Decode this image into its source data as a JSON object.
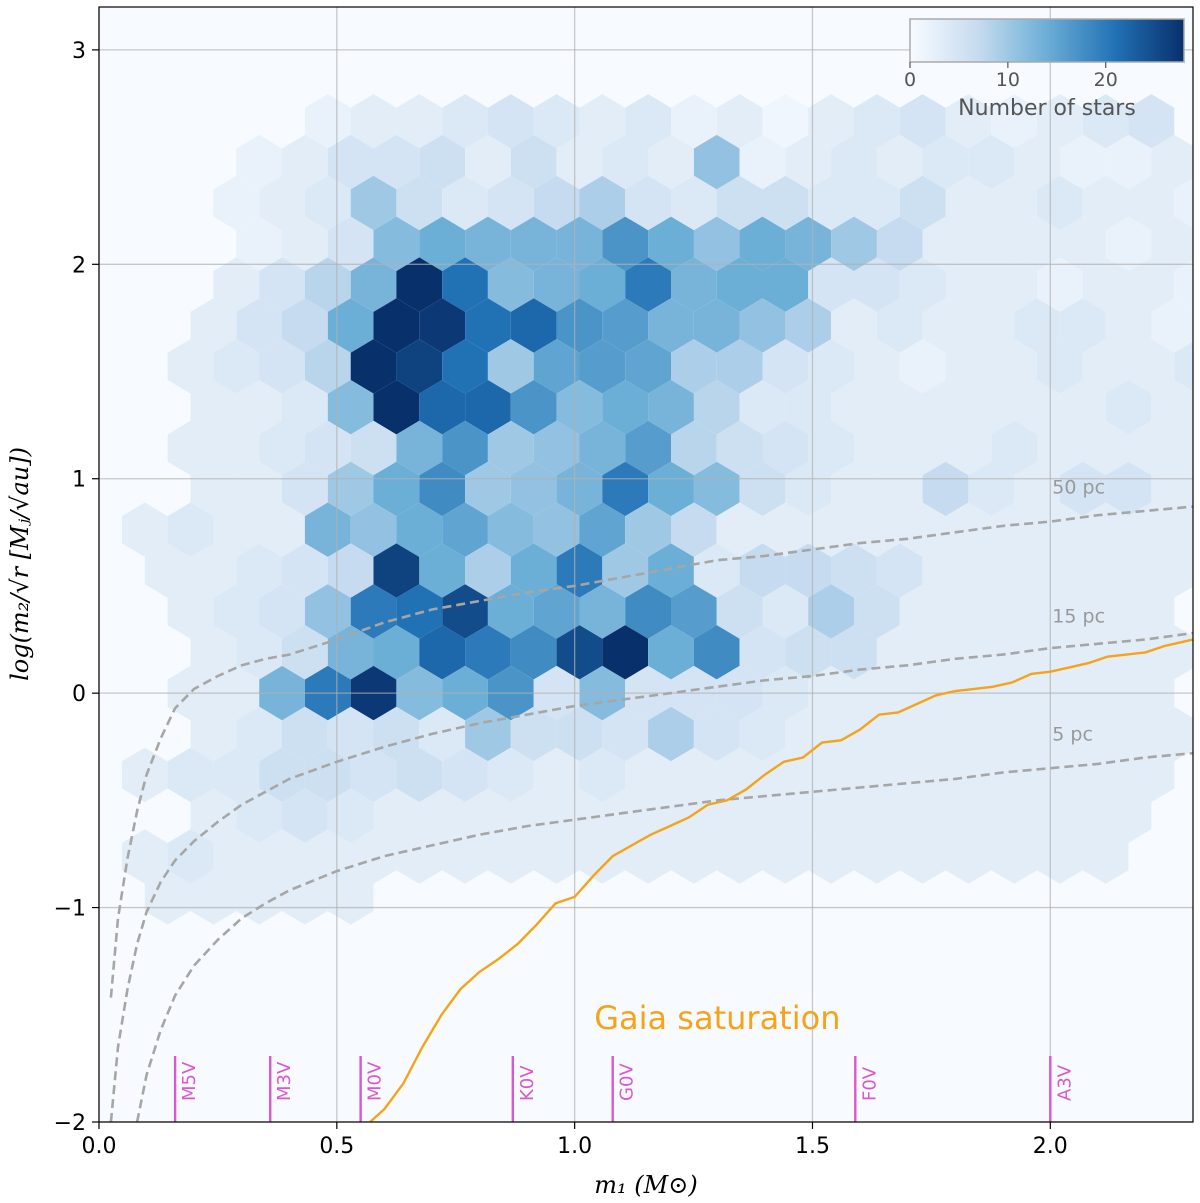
{
  "chart_data": {
    "type": "heatmap",
    "xlabel": "m₁ (M⊙)",
    "ylabel": "log(m₂/√r  [Mⱼ/√au])",
    "xlim": [
      0.0,
      2.3
    ],
    "ylim": [
      -2.0,
      3.2
    ],
    "xticks": [
      0.0,
      0.5,
      1.0,
      1.5,
      2.0
    ],
    "xtick_labels": [
      "0.0",
      "0.5",
      "1.0",
      "1.5",
      "2.0"
    ],
    "yticks": [
      -2,
      -1,
      0,
      1,
      2,
      3
    ],
    "ytick_labels": [
      "−2",
      "−1",
      "0",
      "1",
      "2",
      "3"
    ],
    "grid": true,
    "colorbar": {
      "label": "Number of stars",
      "ticks": [
        0,
        10,
        20
      ],
      "tick_labels": [
        "0",
        "10",
        "20"
      ],
      "vmin": 0,
      "vmax": 28,
      "placement": "top-right",
      "colors": [
        "#f7fbff",
        "#c6dbef",
        "#6baed6",
        "#2171b5",
        "#08306b"
      ]
    },
    "hexbin": {
      "dx": 0.0962,
      "dy": 0.1905,
      "origin_x": 0.0,
      "origin_y": -2.0,
      "counts": [
        [
          3,
          0,
          1
        ],
        [
          2,
          1,
          2
        ],
        [
          2,
          3,
          2
        ],
        [
          0,
          5,
          3
        ],
        [
          1,
          5,
          3
        ],
        [
          2,
          5,
          3
        ],
        [
          4,
          5,
          3
        ],
        [
          5,
          5,
          4
        ],
        [
          6,
          5,
          3
        ],
        [
          8,
          5,
          5
        ],
        [
          9,
          5,
          4
        ],
        [
          10,
          5,
          3
        ],
        [
          11,
          5,
          3
        ],
        [
          14,
          5,
          4
        ],
        [
          15,
          5,
          4
        ],
        [
          16,
          5,
          3
        ],
        [
          18,
          5,
          3
        ],
        [
          19,
          5,
          3
        ],
        [
          21,
          5,
          3
        ],
        [
          22,
          5,
          3
        ],
        [
          7,
          4,
          4
        ],
        [
          8,
          4,
          2
        ],
        [
          9,
          4,
          4
        ],
        [
          10,
          4,
          4
        ],
        [
          11,
          4,
          3
        ],
        [
          12,
          4,
          3
        ],
        [
          13,
          4,
          3
        ],
        [
          14,
          4,
          3
        ],
        [
          15,
          4,
          3
        ],
        [
          16,
          4,
          3
        ],
        [
          17,
          4,
          2
        ],
        [
          18,
          4,
          3
        ],
        [
          19,
          4,
          3
        ],
        [
          20,
          4,
          2
        ],
        [
          21,
          4,
          3
        ],
        [
          22,
          4,
          2
        ],
        [
          23,
          4,
          3
        ],
        [
          0,
          3,
          3
        ],
        [
          1,
          3,
          2
        ],
        [
          2,
          3,
          3
        ],
        [
          3,
          3,
          3
        ],
        [
          4,
          3,
          3
        ],
        [
          5,
          3,
          3
        ],
        [
          6,
          3,
          3
        ],
        [
          7,
          3,
          3
        ],
        [
          8,
          3,
          3
        ],
        [
          9,
          3,
          2
        ],
        [
          10,
          3,
          3
        ],
        [
          11,
          3,
          3
        ],
        [
          12,
          3,
          3
        ],
        [
          13,
          3,
          3
        ],
        [
          14,
          3,
          3
        ],
        [
          15,
          3,
          2
        ],
        [
          16,
          3,
          3
        ],
        [
          17,
          3,
          3
        ],
        [
          18,
          3,
          3
        ],
        [
          19,
          3,
          3
        ],
        [
          20,
          3,
          3
        ],
        [
          21,
          3,
          3
        ],
        [
          22,
          3,
          3
        ],
        [
          23,
          3,
          3
        ]
      ],
      "count_rows": [
        {
          "y_row": 14,
          "x_start": 4,
          "counts": [
            0,
            2,
            3,
            3,
            4,
            5,
            4,
            3,
            4,
            2,
            3,
            1,
            3,
            4,
            5,
            3,
            2,
            3,
            4,
            5
          ]
        },
        {
          "y_row": 13,
          "x_start": 3,
          "counts": [
            2,
            3,
            5,
            5,
            6,
            3,
            6,
            3,
            4,
            3,
            11,
            2,
            3,
            4,
            3,
            4,
            4,
            3,
            2,
            2,
            3,
            3
          ]
        },
        {
          "y_row": 12,
          "x_start": 3,
          "counts": [
            2,
            3,
            4,
            10,
            6,
            4,
            5,
            7,
            9,
            5,
            4,
            6,
            6,
            4,
            4,
            6,
            3,
            3,
            4,
            3,
            3,
            2
          ]
        },
        {
          "y_row": 11,
          "x_start": 3,
          "counts": [
            2,
            3,
            5,
            12,
            14,
            13,
            13,
            13,
            17,
            14,
            11,
            14,
            13,
            10,
            7,
            3,
            3,
            3,
            3,
            2,
            3,
            3
          ]
        },
        {
          "y_row": 10,
          "x_start": 3,
          "counts": [
            3,
            5,
            8,
            13,
            28,
            21,
            12,
            13,
            14,
            20,
            13,
            14,
            14,
            5,
            5,
            4,
            3,
            3,
            2,
            3,
            3,
            2
          ]
        },
        {
          "y_row": 9,
          "x_start": 2,
          "counts": [
            3,
            5,
            7,
            14,
            28,
            27,
            21,
            22,
            17,
            16,
            13,
            13,
            11,
            9,
            3,
            4,
            3,
            3,
            4,
            4,
            3,
            2,
            3,
            2
          ]
        },
        {
          "y_row": 8,
          "x_start": 2,
          "counts": [
            3,
            4,
            5,
            8,
            28,
            26,
            21,
            10,
            15,
            16,
            15,
            9,
            9,
            5,
            4,
            3,
            2,
            3,
            3,
            4,
            3,
            3,
            4,
            3
          ]
        },
        {
          "y_row": 7,
          "x_start": 2,
          "counts": [
            3,
            3,
            4,
            12,
            28,
            22,
            22,
            17,
            12,
            14,
            13,
            8,
            4,
            4,
            3,
            3,
            3,
            3,
            3,
            3,
            4,
            3,
            3
          ]
        },
        {
          "y_row": 6,
          "x_start": 2,
          "counts": [
            3,
            3,
            4,
            5,
            6,
            13,
            17,
            10,
            11,
            13,
            16,
            8,
            6,
            5,
            4,
            3,
            3,
            3,
            4,
            3,
            3,
            3,
            3
          ]
        },
        {
          "y_row": 5,
          "x_start": 2,
          "counts": [
            3,
            3,
            5,
            10,
            14,
            18,
            10,
            11,
            13,
            20,
            14,
            12,
            6,
            4,
            3,
            3,
            7,
            4,
            3,
            5,
            5,
            3,
            3
          ]
        },
        {
          "y_row": 4,
          "x_start": 1,
          "counts": [
            3,
            4,
            3,
            3,
            13,
            11,
            14,
            15,
            12,
            11,
            15,
            10,
            7,
            3,
            3,
            3,
            3,
            3,
            3,
            3,
            3,
            3,
            3,
            3
          ]
        },
        {
          "y_row": 3,
          "x_start": 1,
          "counts": [
            3,
            3,
            4,
            5,
            7,
            26,
            14,
            9,
            14,
            20,
            10,
            14,
            4,
            7,
            7,
            6,
            5,
            3,
            3,
            3,
            3,
            3,
            3
          ]
        },
        {
          "y_row": 2,
          "x_start": 2,
          "counts": [
            3,
            4,
            5,
            11,
            20,
            21,
            25,
            14,
            15,
            13,
            18,
            16,
            6,
            4,
            9,
            6,
            3,
            3,
            3,
            3,
            3,
            3
          ]
        },
        {
          "y_row": 1,
          "x_start": 2,
          "counts": [
            3,
            4,
            6,
            13,
            14,
            22,
            20,
            18,
            25,
            28,
            14,
            18,
            5,
            6,
            6,
            3,
            3,
            3,
            3,
            3,
            3,
            3
          ]
        },
        {
          "y_row": 0,
          "x_start": 2,
          "counts": [
            3,
            3,
            13,
            20,
            27,
            12,
            14,
            17,
            5,
            12,
            5,
            5,
            5,
            4,
            3,
            3,
            3,
            3,
            3,
            3,
            3,
            3
          ]
        },
        {
          "y_row": -1,
          "x_start": 2,
          "counts": [
            3,
            4,
            6,
            5,
            6,
            4,
            10,
            6,
            6,
            5,
            9,
            5,
            4,
            3,
            3,
            3,
            3,
            3,
            3,
            3,
            3,
            3
          ]
        },
        {
          "y_row": -2,
          "x_start": 1,
          "counts": [
            3,
            4,
            4,
            6,
            6,
            5,
            6,
            5,
            4,
            3,
            4,
            3,
            3,
            3,
            3,
            3,
            3,
            3,
            3,
            3,
            3,
            3,
            3
          ]
        },
        {
          "y_row": -3,
          "x_start": 2,
          "counts": [
            3,
            4,
            5,
            4,
            3,
            3,
            3,
            3,
            3,
            3,
            3,
            3,
            3,
            3,
            3,
            3,
            3,
            3,
            3,
            3,
            3
          ]
        },
        {
          "y_row": -4,
          "x_start": 1,
          "counts": [
            3,
            4,
            3,
            3,
            3,
            3,
            3,
            3,
            3,
            3,
            3,
            3,
            3,
            3,
            3,
            3,
            3,
            3,
            3,
            3,
            3,
            3
          ]
        },
        {
          "y_row": -5,
          "x_start": 1,
          "counts": [
            3,
            3,
            3,
            3,
            3
          ]
        }
      ]
    },
    "series": [
      {
        "name": "50 pc",
        "style": "dashed",
        "color": "#a6a6a6",
        "x": [
          0.025,
          0.04,
          0.06,
          0.08,
          0.1,
          0.13,
          0.16,
          0.2,
          0.25,
          0.3,
          0.35,
          0.4,
          0.5,
          0.6,
          0.7,
          0.8,
          0.9,
          1.0,
          1.1,
          1.2,
          1.3,
          1.4,
          1.5,
          1.6,
          1.7,
          1.8,
          1.9,
          2.0,
          2.1,
          2.2,
          2.3
        ],
        "y": [
          -1.42,
          -1.05,
          -0.77,
          -0.55,
          -0.38,
          -0.21,
          -0.07,
          0.02,
          0.08,
          0.13,
          0.16,
          0.18,
          0.25,
          0.33,
          0.39,
          0.43,
          0.47,
          0.5,
          0.54,
          0.58,
          0.62,
          0.64,
          0.67,
          0.7,
          0.72,
          0.75,
          0.78,
          0.8,
          0.83,
          0.85,
          0.87
        ]
      },
      {
        "name": "15 pc",
        "style": "dashed",
        "color": "#a6a6a6",
        "x": [
          0.025,
          0.04,
          0.06,
          0.08,
          0.1,
          0.13,
          0.16,
          0.2,
          0.25,
          0.3,
          0.35,
          0.4,
          0.5,
          0.6,
          0.7,
          0.8,
          0.9,
          1.0,
          1.1,
          1.2,
          1.3,
          1.4,
          1.5,
          1.6,
          1.7,
          1.8,
          1.9,
          2.0,
          2.1,
          2.2,
          2.3
        ],
        "y": [
          -2.0,
          -1.65,
          -1.38,
          -1.17,
          -1.02,
          -0.88,
          -0.78,
          -0.69,
          -0.6,
          -0.52,
          -0.46,
          -0.4,
          -0.32,
          -0.25,
          -0.19,
          -0.14,
          -0.1,
          -0.06,
          -0.03,
          0.0,
          0.03,
          0.06,
          0.08,
          0.11,
          0.13,
          0.16,
          0.18,
          0.21,
          0.23,
          0.25,
          0.28
        ]
      },
      {
        "name": "5 pc",
        "style": "dashed",
        "color": "#a6a6a6",
        "x": [
          0.08,
          0.1,
          0.13,
          0.16,
          0.2,
          0.25,
          0.3,
          0.35,
          0.4,
          0.5,
          0.6,
          0.7,
          0.8,
          0.9,
          1.0,
          1.1,
          1.2,
          1.3,
          1.4,
          1.5,
          1.6,
          1.7,
          1.8,
          1.9,
          2.0,
          2.1,
          2.2,
          2.3
        ],
        "y": [
          -2.0,
          -1.78,
          -1.57,
          -1.41,
          -1.27,
          -1.15,
          -1.05,
          -0.98,
          -0.92,
          -0.83,
          -0.76,
          -0.71,
          -0.66,
          -0.62,
          -0.59,
          -0.56,
          -0.53,
          -0.5,
          -0.48,
          -0.46,
          -0.44,
          -0.42,
          -0.4,
          -0.37,
          -0.35,
          -0.33,
          -0.3,
          -0.28
        ]
      },
      {
        "name": "Gaia saturation",
        "style": "solid",
        "color": "#f5a31a",
        "x": [
          0.57,
          0.6,
          0.64,
          0.68,
          0.72,
          0.76,
          0.8,
          0.84,
          0.88,
          0.92,
          0.96,
          1.0,
          1.04,
          1.08,
          1.12,
          1.16,
          1.2,
          1.24,
          1.28,
          1.32,
          1.36,
          1.4,
          1.44,
          1.48,
          1.52,
          1.56,
          1.6,
          1.64,
          1.68,
          1.72,
          1.76,
          1.8,
          1.84,
          1.88,
          1.92,
          1.96,
          2.0,
          2.04,
          2.08,
          2.12,
          2.16,
          2.2,
          2.24,
          2.28,
          2.3
        ],
        "y": [
          -2.0,
          -1.94,
          -1.82,
          -1.65,
          -1.5,
          -1.38,
          -1.3,
          -1.24,
          -1.17,
          -1.08,
          -0.98,
          -0.95,
          -0.85,
          -0.76,
          -0.71,
          -0.66,
          -0.62,
          -0.58,
          -0.52,
          -0.5,
          -0.45,
          -0.38,
          -0.32,
          -0.3,
          -0.23,
          -0.22,
          -0.17,
          -0.1,
          -0.09,
          -0.05,
          -0.01,
          0.01,
          0.02,
          0.03,
          0.05,
          0.09,
          0.1,
          0.12,
          0.14,
          0.17,
          0.18,
          0.19,
          0.22,
          0.24,
          0.25
        ]
      }
    ],
    "distance_labels": [
      {
        "text": "50 pc",
        "x": 2.0,
        "y": 0.93
      },
      {
        "text": "15 pc",
        "x": 2.0,
        "y": 0.33
      },
      {
        "text": "5 pc",
        "x": 2.0,
        "y": -0.22
      }
    ],
    "saturation_label": {
      "text": "Gaia saturation",
      "x": 1.3,
      "y": -1.5
    },
    "spectral_types": [
      {
        "label": "M5V",
        "x": 0.16
      },
      {
        "label": "M3V",
        "x": 0.36
      },
      {
        "label": "M0V",
        "x": 0.55
      },
      {
        "label": "K0V",
        "x": 0.87
      },
      {
        "label": "G0V",
        "x": 1.08
      },
      {
        "label": "F0V",
        "x": 1.59
      },
      {
        "label": "A3V",
        "x": 2.0
      }
    ],
    "spectral_marker_color": "#d957cf"
  }
}
